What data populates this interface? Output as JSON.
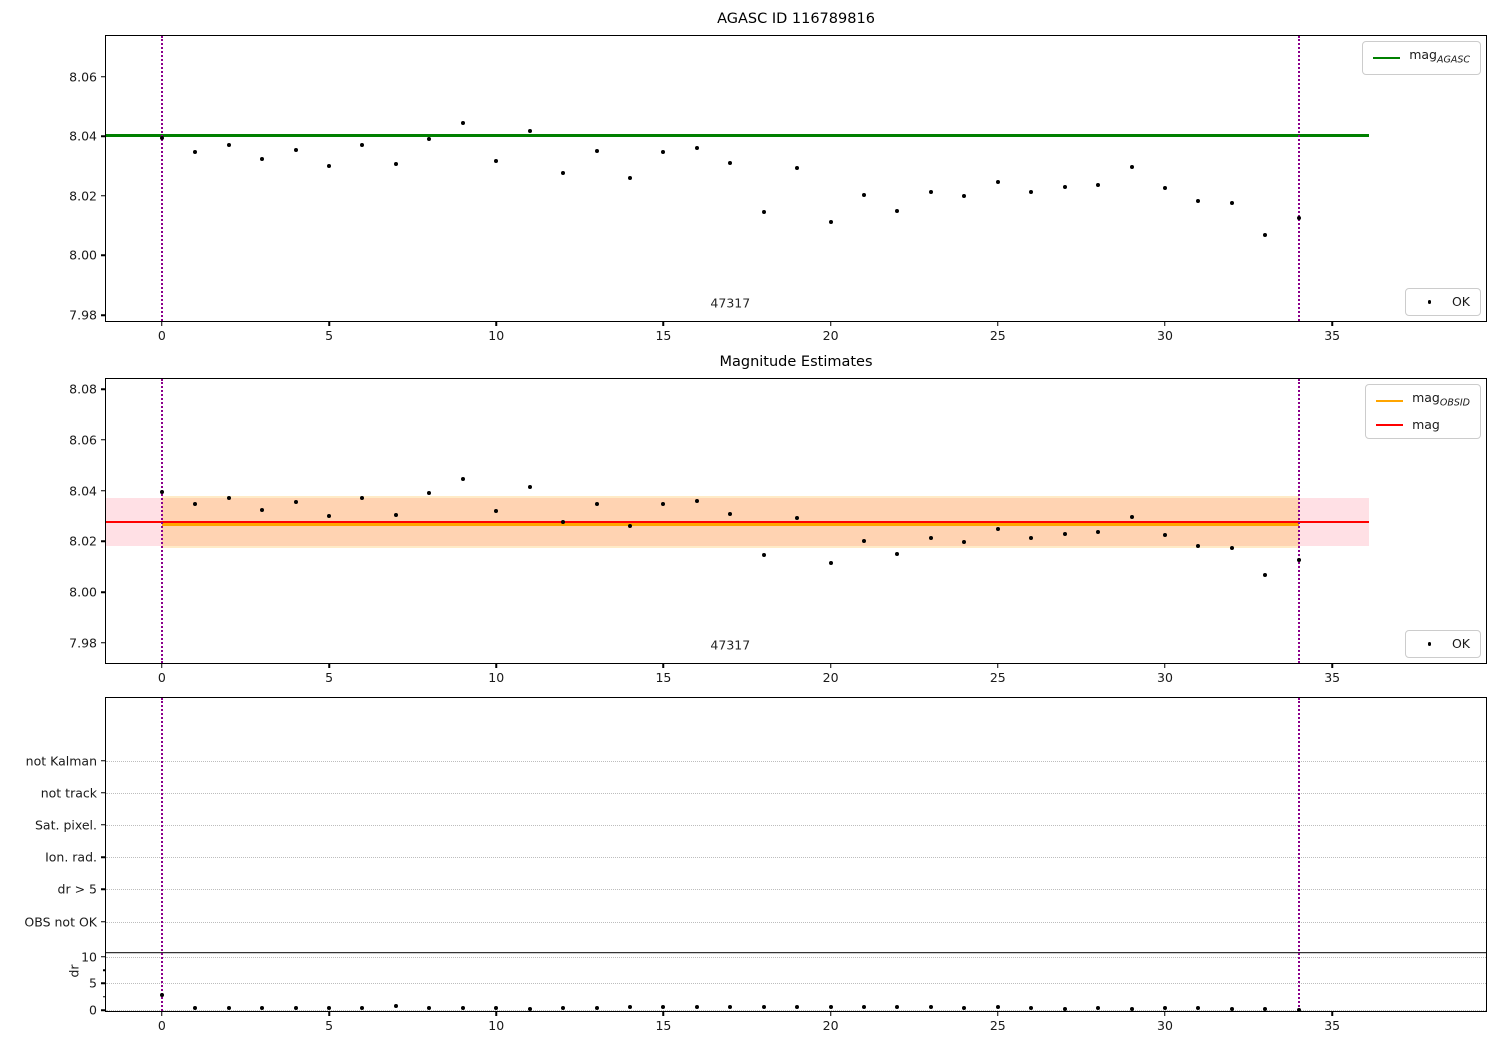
{
  "figure": {
    "background": "#ffffff",
    "colors": {
      "mag_agasc_line": "#008000",
      "mag_obsid_line": "#ffa500",
      "mag_line": "#ff0000",
      "marker": "#000000",
      "obsid_boundary_vline": "#8b008b",
      "mag_err_band": "rgba(255,0,45,0.12)",
      "mag_obsid_err_band": "rgba(255,165,0,0.22)"
    }
  },
  "chart_data": [
    {
      "type": "scatter",
      "variant": "magnitude",
      "title": "AGASC ID 116789816",
      "xlabel": "",
      "ylabel": "",
      "grid": false,
      "xlim": [
        -1.671,
        39.6
      ],
      "ylim": [
        7.978,
        8.0736
      ],
      "xticks": [
        {
          "v": 0,
          "label": "0"
        },
        {
          "v": 5,
          "label": "5"
        },
        {
          "v": 10,
          "label": "10"
        },
        {
          "v": 15,
          "label": "15"
        },
        {
          "v": 20,
          "label": "20"
        },
        {
          "v": 25,
          "label": "25"
        },
        {
          "v": 30,
          "label": "30"
        },
        {
          "v": 35,
          "label": "35"
        }
      ],
      "yticks": [
        {
          "v": 8.06,
          "label": "8.06"
        },
        {
          "v": 8.04,
          "label": "8.04"
        },
        {
          "v": 8.02,
          "label": "8.02"
        },
        {
          "v": 8.0,
          "label": "8.00"
        },
        {
          "v": 7.98,
          "label": "7.98"
        }
      ],
      "annotation": {
        "text": "47317",
        "x": 17,
        "y": 7.984
      },
      "hlines": [
        {
          "name": "mag-agasc-line",
          "y": 8.0403,
          "x0": -1.671,
          "x1": 36.1,
          "color": "#008000",
          "lw": 2.5
        }
      ],
      "vlines": [
        {
          "x": 0
        },
        {
          "x": 34
        }
      ],
      "legends": [
        {
          "loc": "top-right",
          "items": [
            {
              "swatch": "line",
              "color": "#008000",
              "label": "mag",
              "sub": "AGASC"
            }
          ]
        },
        {
          "loc": "bottom-right",
          "items": [
            {
              "swatch": "dot",
              "color": "#000000",
              "label": "OK",
              "sub": ""
            }
          ]
        }
      ],
      "series": [
        {
          "name": "OK",
          "marker": "dot",
          "color": "#000000",
          "x": [
            0,
            1,
            2,
            3,
            4,
            5,
            6,
            7,
            8,
            9,
            10,
            11,
            12,
            13,
            14,
            15,
            16,
            17,
            18,
            19,
            20,
            21,
            22,
            23,
            24,
            25,
            26,
            27,
            28,
            29,
            30,
            31,
            32,
            33,
            34
          ],
          "y": [
            8.0395,
            8.0348,
            8.0372,
            8.0325,
            8.0355,
            8.03,
            8.0372,
            8.0305,
            8.0392,
            8.0445,
            8.0318,
            8.0416,
            8.0276,
            8.0349,
            8.0259,
            8.0346,
            8.0359,
            8.0309,
            8.0145,
            8.0293,
            8.0113,
            8.0203,
            8.015,
            8.0213,
            8.0198,
            8.0247,
            8.0212,
            8.0228,
            8.0235,
            8.0295,
            8.0225,
            8.0182,
            8.0175,
            8.0068,
            8.0125
          ]
        }
      ]
    },
    {
      "type": "scatter",
      "variant": "magnitude",
      "title": "Magnitude Estimates",
      "xlabel": "",
      "ylabel": "",
      "grid": false,
      "xlim": [
        -1.671,
        39.6
      ],
      "ylim": [
        7.972,
        8.084
      ],
      "xticks": [
        {
          "v": 0,
          "label": "0"
        },
        {
          "v": 5,
          "label": "5"
        },
        {
          "v": 10,
          "label": "10"
        },
        {
          "v": 15,
          "label": "15"
        },
        {
          "v": 20,
          "label": "20"
        },
        {
          "v": 25,
          "label": "25"
        },
        {
          "v": 30,
          "label": "30"
        },
        {
          "v": 35,
          "label": "35"
        }
      ],
      "yticks": [
        {
          "v": 8.08,
          "label": "8.08"
        },
        {
          "v": 8.06,
          "label": "8.06"
        },
        {
          "v": 8.04,
          "label": "8.04"
        },
        {
          "v": 8.02,
          "label": "8.02"
        },
        {
          "v": 8.0,
          "label": "8.00"
        },
        {
          "v": 7.98,
          "label": "7.98"
        }
      ],
      "annotation": {
        "text": "47317",
        "x": 17,
        "y": 7.979
      },
      "bands": [
        {
          "name": "mag-err-band",
          "y0": 8.018,
          "y1": 8.037,
          "x0": -1.671,
          "x1": 36.1,
          "color": "rgba(255,0,45,0.12)"
        },
        {
          "name": "mag-obsid-err-band",
          "y0": 8.0172,
          "y1": 8.0378,
          "x0": 0,
          "x1": 34,
          "color": "rgba(255,165,0,0.22)"
        }
      ],
      "hlines": [
        {
          "name": "mag-obsid-line",
          "y": 8.0269,
          "x0": 0,
          "x1": 34,
          "color": "#ffa500",
          "lw": 3.5
        },
        {
          "name": "mag-line",
          "y": 8.0276,
          "x0": -1.671,
          "x1": 36.1,
          "color": "#ff0000",
          "lw": 2.5
        }
      ],
      "vlines": [
        {
          "x": 0
        },
        {
          "x": 34
        }
      ],
      "legends": [
        {
          "loc": "top-right",
          "items": [
            {
              "swatch": "line",
              "color": "#ffa500",
              "label": "mag",
              "sub": "OBSID"
            },
            {
              "swatch": "line",
              "color": "#ff0000",
              "label": "mag",
              "sub": ""
            }
          ]
        },
        {
          "loc": "bottom-right",
          "items": [
            {
              "swatch": "dot",
              "color": "#000000",
              "label": "OK",
              "sub": ""
            }
          ]
        }
      ],
      "series": [
        {
          "name": "OK",
          "marker": "dot",
          "color": "#000000",
          "x": [
            0,
            1,
            2,
            3,
            4,
            5,
            6,
            7,
            8,
            9,
            10,
            11,
            12,
            13,
            14,
            15,
            16,
            17,
            18,
            19,
            20,
            21,
            22,
            23,
            24,
            25,
            26,
            27,
            28,
            29,
            30,
            31,
            32,
            33,
            34
          ],
          "y": [
            8.0395,
            8.0348,
            8.0372,
            8.0325,
            8.0355,
            8.03,
            8.0372,
            8.0305,
            8.0392,
            8.0445,
            8.0318,
            8.0416,
            8.0276,
            8.0349,
            8.0259,
            8.0346,
            8.0359,
            8.0309,
            8.0145,
            8.0293,
            8.0113,
            8.0203,
            8.015,
            8.0213,
            8.0198,
            8.0247,
            8.0212,
            8.0228,
            8.0235,
            8.0295,
            8.0225,
            8.0182,
            8.0175,
            8.0068,
            8.0125
          ]
        }
      ]
    },
    {
      "type": "scatter",
      "variant": "flags",
      "title": "",
      "xlabel": "",
      "ylabel": "dr",
      "grid": true,
      "xlim": [
        -1.671,
        39.6
      ],
      "xticks": [
        {
          "v": 0,
          "label": "0"
        },
        {
          "v": 5,
          "label": "5"
        },
        {
          "v": 10,
          "label": "10"
        },
        {
          "v": 15,
          "label": "15"
        },
        {
          "v": 20,
          "label": "20"
        },
        {
          "v": 25,
          "label": "25"
        },
        {
          "v": 30,
          "label": "30"
        },
        {
          "v": 35,
          "label": "35"
        }
      ],
      "flag_labels": [
        "not Kalman",
        "not track",
        "Sat. pixel.",
        "Ion. rad.",
        "dr > 5",
        "OBS not OK"
      ],
      "dr_ticks": [
        {
          "v": 10,
          "label": "10"
        },
        {
          "v": 5,
          "label": "5"
        },
        {
          "v": 0,
          "label": "0"
        }
      ],
      "vlines": [
        {
          "x": 0
        },
        {
          "x": 34
        }
      ],
      "series": [
        {
          "name": "dr",
          "marker": "dot",
          "color": "#000000",
          "x": [
            0,
            1,
            2,
            3,
            4,
            5,
            6,
            7,
            8,
            9,
            10,
            11,
            12,
            13,
            14,
            15,
            16,
            17,
            18,
            19,
            20,
            21,
            22,
            23,
            24,
            25,
            26,
            27,
            28,
            29,
            30,
            31,
            32,
            33,
            34
          ],
          "dr": [
            2.9,
            0.45,
            0.3,
            0.45,
            0.3,
            0.3,
            0.3,
            0.8,
            0.45,
            0.45,
            0.35,
            0.25,
            0.3,
            0.45,
            0.6,
            0.55,
            0.6,
            0.55,
            0.5,
            0.55,
            0.6,
            0.5,
            0.5,
            0.5,
            0.45,
            0.5,
            0.4,
            0.25,
            0.35,
            0.2,
            0.4,
            0.3,
            0.25,
            0.2,
            0.1
          ]
        }
      ]
    }
  ]
}
